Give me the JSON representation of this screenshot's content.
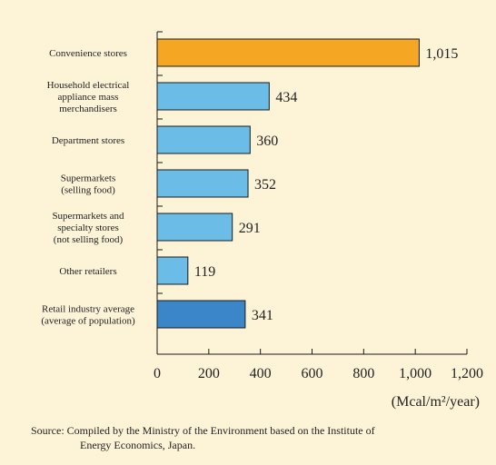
{
  "chart_data": {
    "type": "bar",
    "orientation": "horizontal",
    "categories": [
      [
        "Convenience stores"
      ],
      [
        "Household electrical",
        "appliance mass",
        "merchandisers"
      ],
      [
        "Department stores"
      ],
      [
        "Supermarkets",
        "(selling food)"
      ],
      [
        "Supermarkets and",
        "specialty stores",
        "(not selling food)"
      ],
      [
        "Other retailers"
      ],
      [
        "Retail industry average",
        "(average of population)"
      ]
    ],
    "values": [
      1015,
      434,
      360,
      352,
      291,
      119,
      341
    ],
    "value_labels": [
      "1,015",
      "434",
      "360",
      "352",
      "291",
      "119",
      "341"
    ],
    "bar_colors": [
      "#f5a623",
      "#6bbde8",
      "#6bbde8",
      "#6bbde8",
      "#6bbde8",
      "#6bbde8",
      "#3a86c8"
    ],
    "x_ticks": [
      0,
      200,
      400,
      600,
      800,
      1000,
      1200
    ],
    "x_tick_labels": [
      "0",
      "200",
      "400",
      "600",
      "800",
      "1,000",
      "1,200"
    ],
    "xlim": [
      0,
      1200
    ],
    "unit_label": "(Mcal/m²/year)",
    "grid": false
  },
  "source_note": {
    "line1": "Source: Compiled by the Ministry of the Environment based on the Institute of",
    "line2": "Energy Economics, Japan."
  }
}
